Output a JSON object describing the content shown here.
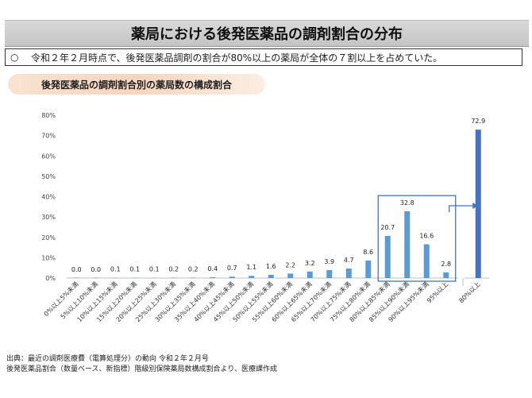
{
  "header": {
    "title": "薬局における後発医薬品の調剤割合の分布"
  },
  "summary": {
    "bullet": "○",
    "text": "令和２年２月時点で、後発医薬品調剤の割合が80%以上の薬局が全体の７割以上を占めていた。"
  },
  "chart_title": "後発医薬品の調剤割合別の薬局数の構成割合",
  "source": {
    "line1": "出典：最近の調剤医療費（電算処理分）の動向 令和２年２月号",
    "line2": "後発医薬品割合（数量ベース、新指標）階級別保険薬局数構成割合より、医療課作成"
  },
  "chart_data": {
    "type": "bar",
    "categories": [
      "0%以上5%未満",
      "5%以上10%未満",
      "10%以上15%未満",
      "15%以上20%未満",
      "20%以上25%未満",
      "25%以上30%未満",
      "30%以上35%未満",
      "35%以上40%未満",
      "40%以上45%未満",
      "45%以上50%未満",
      "50%以上55%未満",
      "55%以上60%未満",
      "60%以上65%未満",
      "65%以上70%未満",
      "70%以上75%未満",
      "75%以上80%未満",
      "80%以上85%未満",
      "85%以上90%未満",
      "90%以上95%未満",
      "95%以上",
      "80%以上"
    ],
    "values": [
      0.0,
      0.0,
      0.1,
      0.1,
      0.1,
      0.2,
      0.2,
      0.4,
      0.7,
      1.1,
      1.6,
      2.2,
      3.2,
      3.9,
      4.7,
      8.6,
      20.7,
      32.8,
      16.6,
      2.8,
      72.9
    ],
    "data_labels": [
      "0.0",
      "0.0",
      "0.1",
      "0.1",
      "0.1",
      "0.2",
      "0.2",
      "0.4",
      "0.7",
      "1.1",
      "1.6",
      "2.2",
      "3.2",
      "3.9",
      "4.7",
      "8.6",
      "20.7",
      "32.8",
      "16.6",
      "2.8",
      "72.9"
    ],
    "yticks": [
      "0%",
      "10%",
      "20%",
      "30%",
      "40%",
      "50%",
      "60%",
      "70%",
      "80%"
    ],
    "ylim": [
      0,
      80
    ],
    "xlabel": "",
    "ylabel": "",
    "grid": false,
    "bar_color": "#5b9bd5",
    "highlight_color": "#4472c4",
    "highlight_range": [
      16,
      19
    ],
    "aggregate_index": 20
  }
}
